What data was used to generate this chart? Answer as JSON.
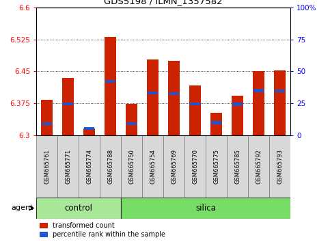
{
  "title": "GDS5198 / ILMN_1357582",
  "samples": [
    "GSM665761",
    "GSM665771",
    "GSM665774",
    "GSM665788",
    "GSM665750",
    "GSM665754",
    "GSM665769",
    "GSM665770",
    "GSM665775",
    "GSM665785",
    "GSM665792",
    "GSM665793"
  ],
  "red_values": [
    6.383,
    6.435,
    6.316,
    6.53,
    6.374,
    6.478,
    6.475,
    6.417,
    6.353,
    6.393,
    6.45,
    6.452
  ],
  "blue_values": [
    6.328,
    6.374,
    6.316,
    6.427,
    6.328,
    6.4,
    6.398,
    6.374,
    6.33,
    6.373,
    6.405,
    6.404
  ],
  "ymin": 6.3,
  "ymax": 6.6,
  "yticks": [
    6.3,
    6.375,
    6.45,
    6.525,
    6.6
  ],
  "ytick_labels": [
    "6.3",
    "6.375",
    "6.45",
    "6.525",
    "6.6"
  ],
  "right_yticks": [
    0,
    25,
    50,
    75,
    100
  ],
  "right_ytick_labels": [
    "0",
    "25",
    "50",
    "75",
    "100%"
  ],
  "bar_color": "#cc2200",
  "blue_color": "#2255cc",
  "bar_width": 0.55,
  "control_color": "#aae899",
  "silica_color": "#77dd66",
  "legend_red": "transformed count",
  "legend_blue": "percentile rank within the sample",
  "n_control": 4,
  "n_total": 12
}
